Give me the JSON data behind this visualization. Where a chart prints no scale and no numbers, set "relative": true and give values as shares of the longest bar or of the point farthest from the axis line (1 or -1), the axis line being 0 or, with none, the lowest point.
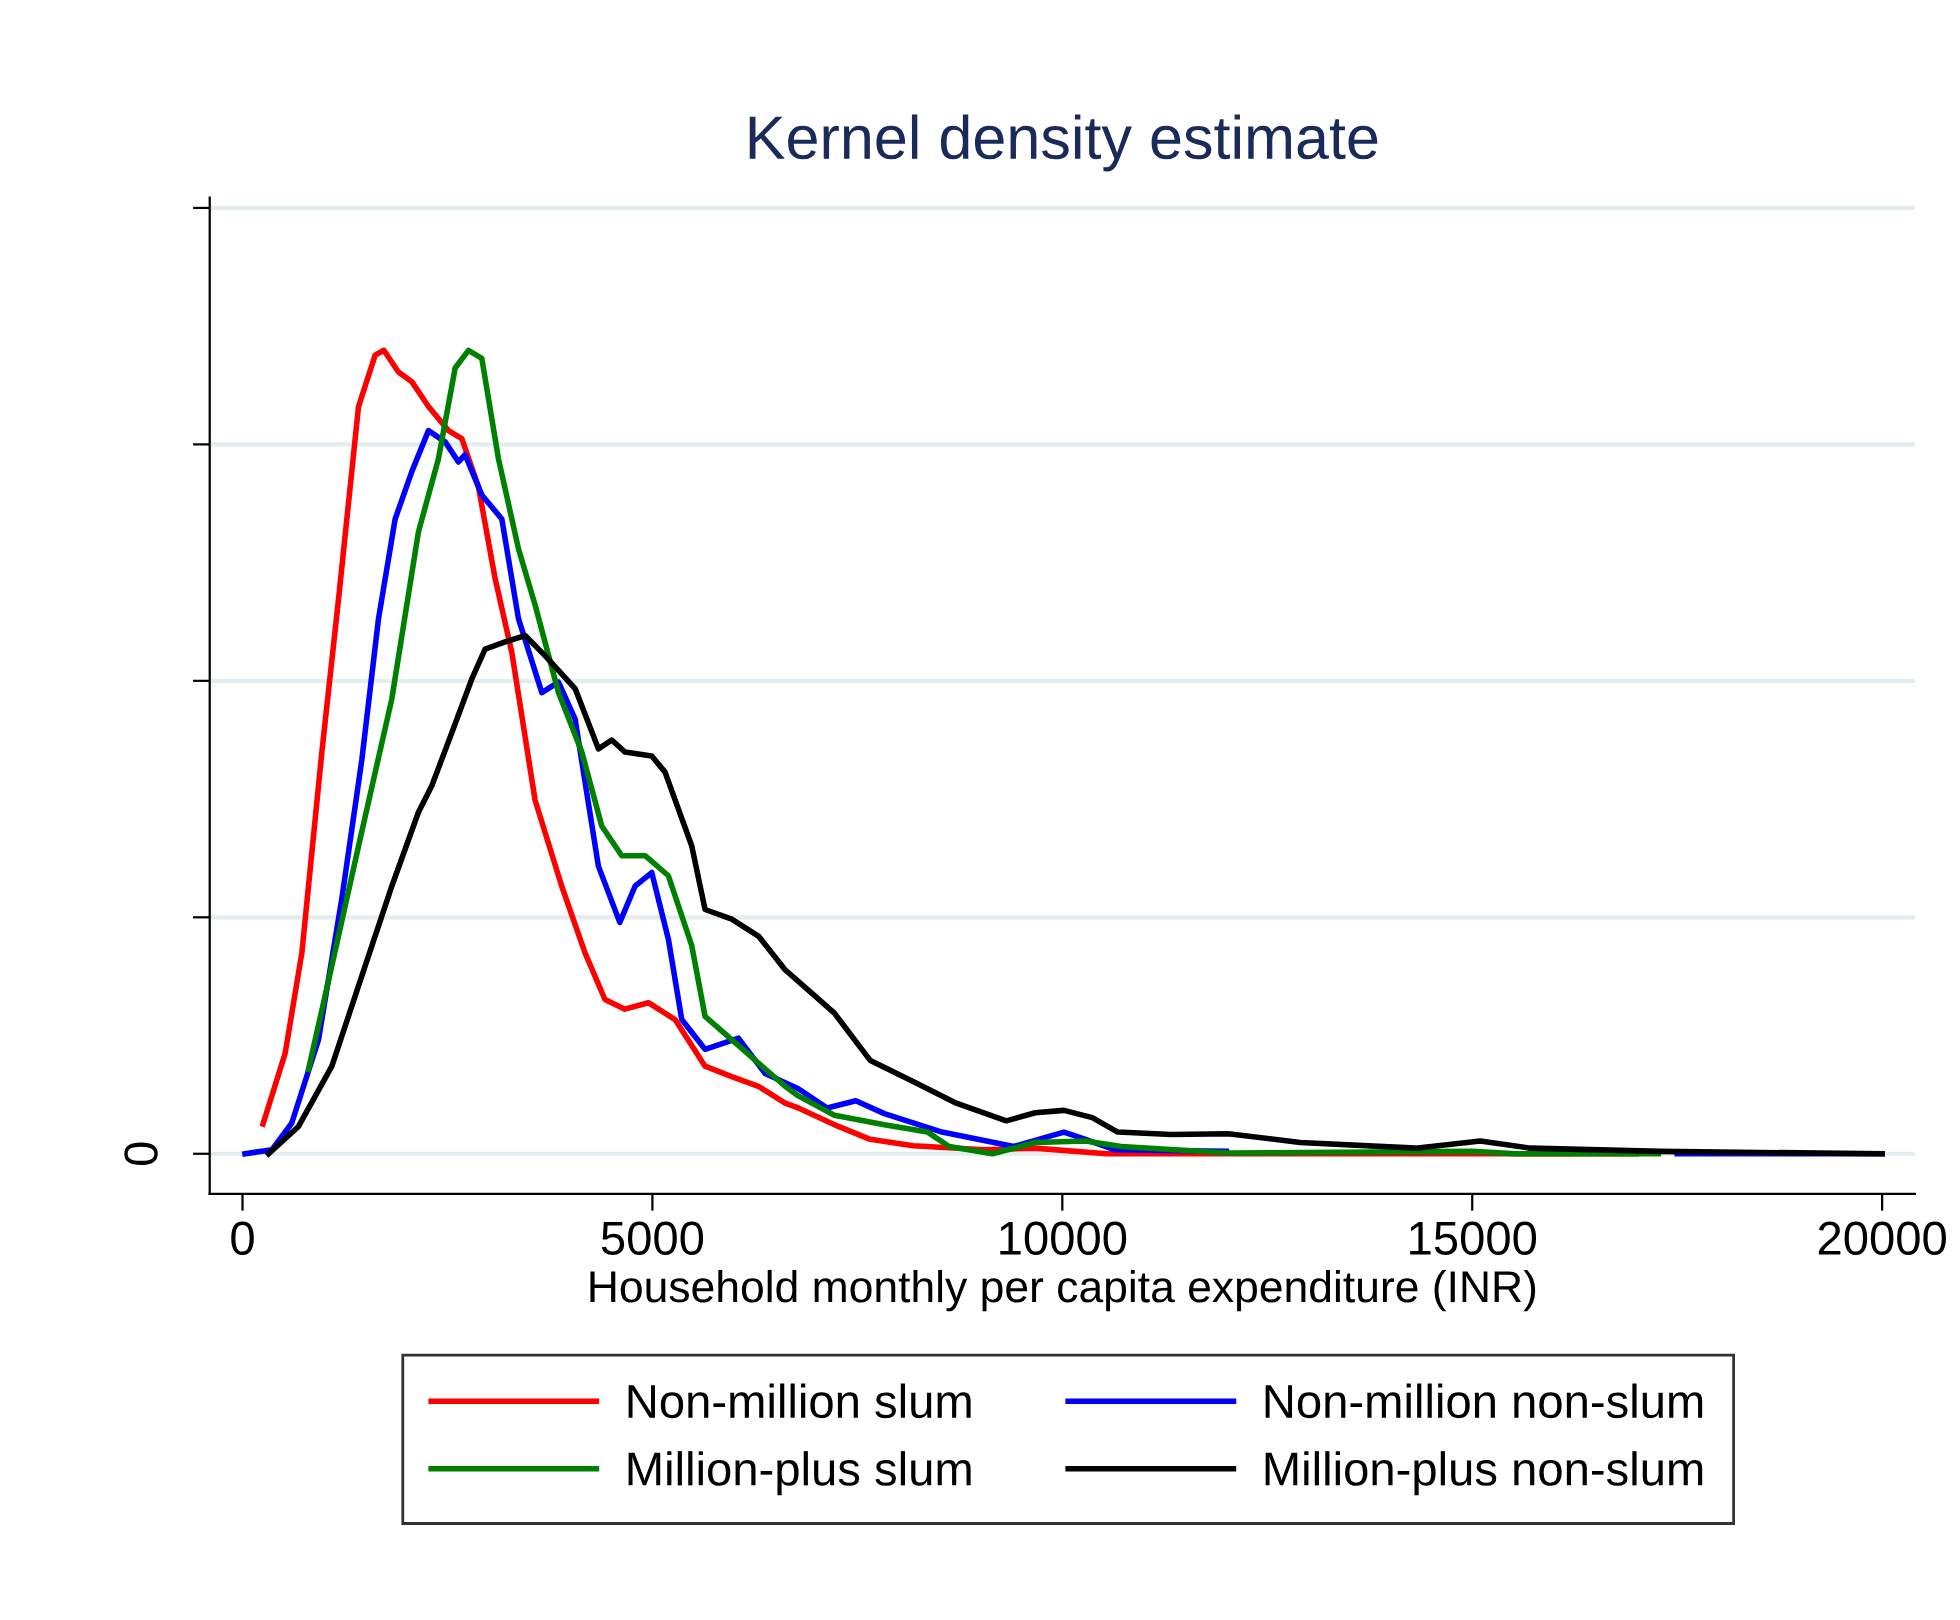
{
  "chart_data": {
    "type": "line",
    "title": "Kernel density estimate",
    "xlabel": "Household monthly per capita expenditure (INR)",
    "relative": true,
    "xlim": [
      -400,
      20400
    ],
    "xticks": [
      0,
      5000,
      10000,
      15000,
      20000
    ],
    "grid": "y",
    "legend": "bottom",
    "line_style": "solid",
    "marker": "none",
    "annotations": [
      "0"
    ],
    "series": [
      {
        "name": "Non-million slum",
        "color": "#ff0000",
        "x": [
          250,
          520,
          724,
          968,
          1171,
          1415,
          1618,
          1724,
          1902,
          2065,
          2268,
          2512,
          2675,
          2878,
          3081,
          3285,
          3569,
          3894,
          4178,
          4421,
          4665,
          4951,
          5276,
          5642,
          5967,
          6293,
          6618,
          6780,
          7268,
          7656,
          8180,
          9050,
          9660,
          10540,
          12000,
          15000,
          17000
        ],
        "values": [
          0.037,
          0.125,
          0.25,
          0.5,
          0.69,
          0.93,
          0.994,
          1.0,
          0.973,
          0.961,
          0.93,
          0.9,
          0.89,
          0.83,
          0.716,
          0.624,
          0.44,
          0.333,
          0.25,
          0.192,
          0.18,
          0.188,
          0.167,
          0.109,
          0.096,
          0.084,
          0.063,
          0.057,
          0.034,
          0.018,
          0.01,
          0.005,
          0.007,
          0.0,
          0.0,
          0.0,
          0.0
        ]
      },
      {
        "name": "Non-million non-slum",
        "color": "#0000ff",
        "x": [
          30,
          360,
          600,
          927,
          1211,
          1455,
          1659,
          1862,
          2065,
          2268,
          2472,
          2634,
          2715,
          2919,
          3163,
          3366,
          3651,
          3854,
          4057,
          4341,
          4602,
          4788,
          4992,
          5195,
          5358,
          5642,
          6049,
          6374,
          6780,
          7132,
          7481,
          7829,
          8532,
          9407,
          10020,
          10283,
          10634,
          12000,
          15000,
          17500,
          20000
        ],
        "values": [
          0.0,
          0.005,
          0.038,
          0.142,
          0.317,
          0.49,
          0.666,
          0.79,
          0.849,
          0.9,
          0.886,
          0.861,
          0.87,
          0.82,
          0.79,
          0.666,
          0.574,
          0.587,
          0.541,
          0.358,
          0.288,
          0.333,
          0.35,
          0.267,
          0.167,
          0.13,
          0.144,
          0.1,
          0.081,
          0.057,
          0.066,
          0.05,
          0.027,
          0.009,
          0.027,
          0.018,
          0.005,
          0.003,
          null,
          0.0,
          0.0
        ]
      },
      {
        "name": "Million-plus slum",
        "color": "#008000",
        "x": [
          805,
          1090,
          1415,
          1821,
          2146,
          2390,
          2594,
          2756,
          2919,
          3122,
          3366,
          3569,
          3854,
          4139,
          4382,
          4626,
          4911,
          5195,
          5480,
          5642,
          5967,
          6618,
          6780,
          7220,
          7829,
          8356,
          8620,
          9146,
          9670,
          10283,
          10720,
          12024,
          15000,
          15537,
          17270
        ],
        "values": [
          0.105,
          0.234,
          0.383,
          0.566,
          0.774,
          0.865,
          0.978,
          1.0,
          0.99,
          0.865,
          0.753,
          0.683,
          0.574,
          0.5,
          0.408,
          0.371,
          0.371,
          0.346,
          0.259,
          0.171,
          0.142,
          0.084,
          0.072,
          0.048,
          0.036,
          0.027,
          0.009,
          0.0,
          0.014,
          0.016,
          0.009,
          0.001,
          0.003,
          0.0,
          0.0
        ]
      },
      {
        "name": "Million-plus non-slum",
        "color": "#000000",
        "x": [
          317,
          683,
          1090,
          1415,
          1821,
          2146,
          2309,
          2553,
          2797,
          2959,
          3203,
          3447,
          3690,
          4057,
          4341,
          4504,
          4665,
          4992,
          5154,
          5480,
          5642,
          5967,
          6293,
          6618,
          6943,
          7220,
          7659,
          8180,
          8707,
          9317,
          9670,
          10020,
          10366,
          10676,
          11331,
          12024,
          12902,
          14310,
          15098,
          15707,
          17285,
          20000
        ],
        "values": [
          0.0,
          0.034,
          0.109,
          0.209,
          0.333,
          0.425,
          0.458,
          0.524,
          0.591,
          0.628,
          0.637,
          0.645,
          0.62,
          0.579,
          0.504,
          0.515,
          0.5,
          0.495,
          0.475,
          0.383,
          0.304,
          0.292,
          0.271,
          0.229,
          0.2,
          0.175,
          0.116,
          0.09,
          0.063,
          0.041,
          0.051,
          0.054,
          0.045,
          0.027,
          0.024,
          0.025,
          0.014,
          0.007,
          0.016,
          0.007,
          0.003,
          0.0
        ]
      }
    ]
  }
}
